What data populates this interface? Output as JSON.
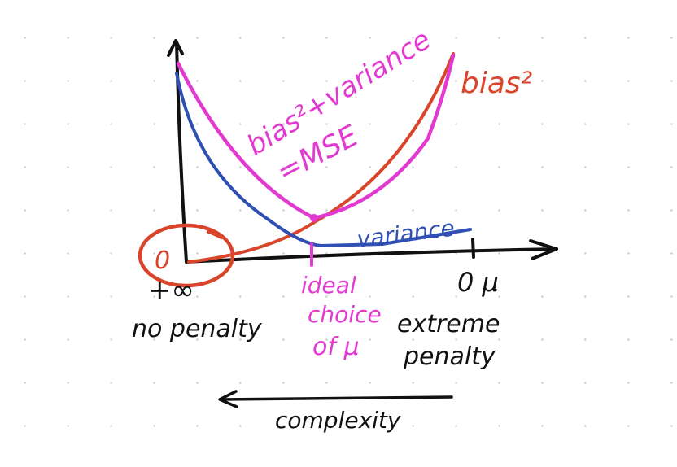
{
  "labels": {
    "bias2_mse_line1": "bias²+variance",
    "bias2_mse_line2": "=MSE",
    "bias2": "bias²",
    "variance": "variance",
    "ideal_line1": "ideal",
    "ideal_line2": "choice",
    "ideal_line3": "of μ",
    "origin_value": "0",
    "plus_infinity": "+∞",
    "no_penalty": "no penalty",
    "zero_mu": "0 μ",
    "extreme_line1": "extreme",
    "extreme_line2": "penalty",
    "complexity": "complexity"
  },
  "colors": {
    "ink": "#111111",
    "magenta": "#e23ad0",
    "red": "#d9452b",
    "blue": "#2f4fb3",
    "grid_dot": "#c9c9c9"
  }
}
